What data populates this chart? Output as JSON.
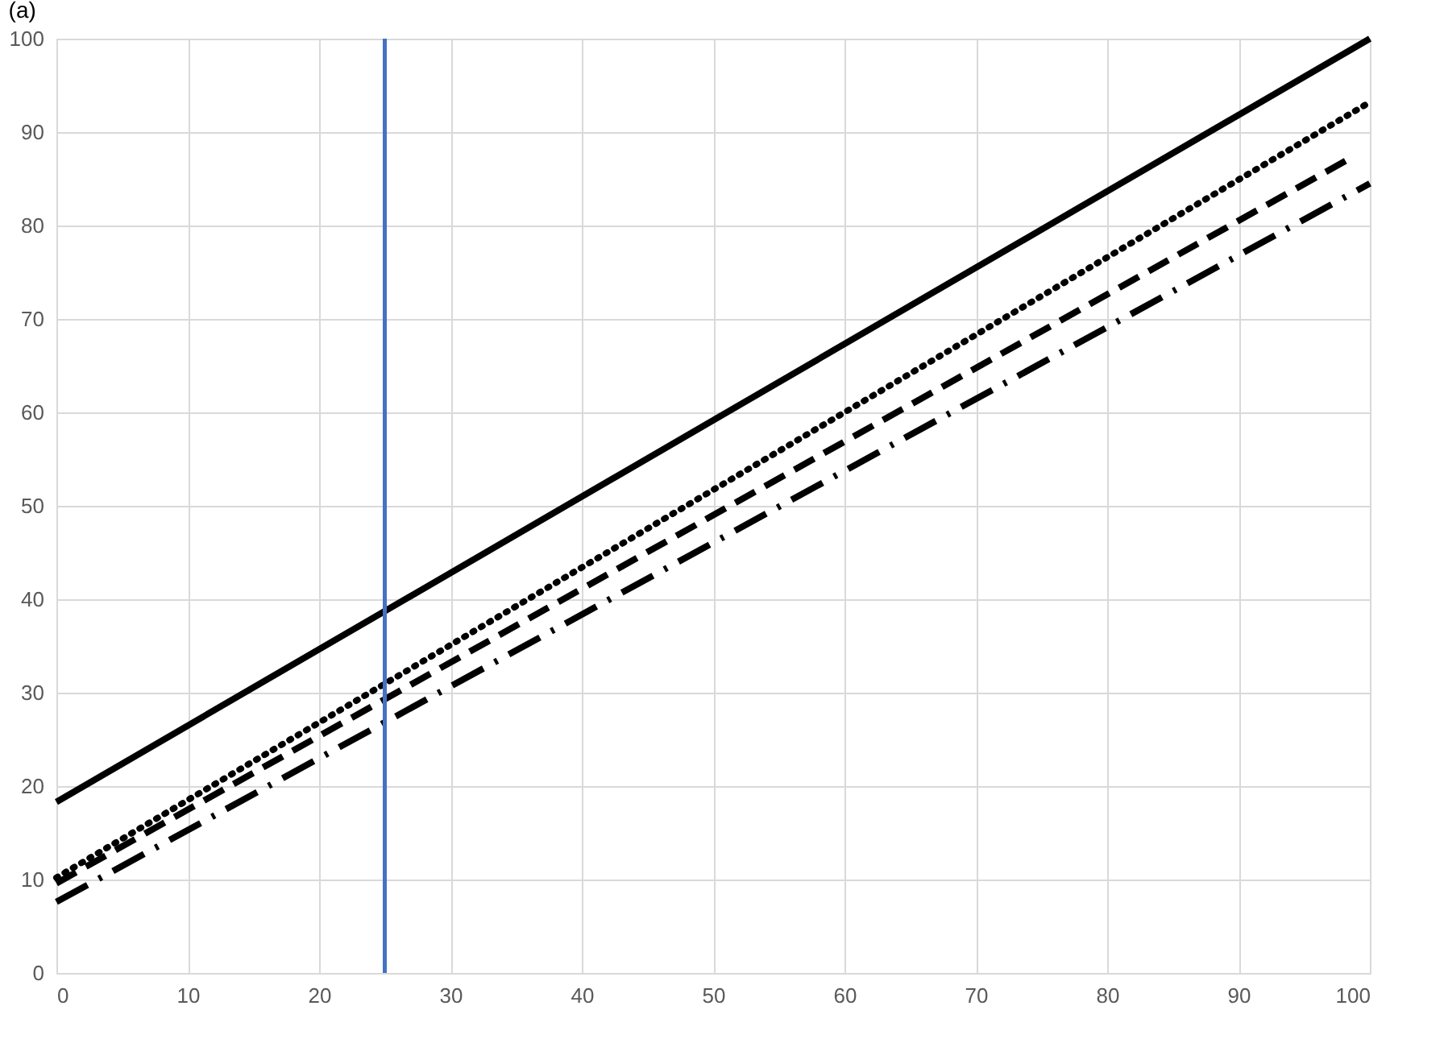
{
  "chart_data": {
    "type": "line",
    "title": "(a)",
    "series": [
      {
        "color": "#000000",
        "line_style": "solid",
        "x": [
          0,
          100
        ],
        "values": [
          18.3,
          100
        ]
      },
      {
        "color": "#000000",
        "line_style": "dotted",
        "x": [
          0,
          100
        ],
        "values": [
          10.2,
          93.2
        ]
      },
      {
        "color": "#000000",
        "line_style": "dashed",
        "x": [
          0,
          98.5
        ],
        "values": [
          9.6,
          87.2
        ]
      },
      {
        "color": "#000000",
        "line_style": "dashdot",
        "x": [
          0,
          100
        ],
        "values": [
          7.6,
          84.5
        ]
      }
    ],
    "ref_lines": [
      {
        "axis": "x",
        "value": 25,
        "color": "#4472c4"
      }
    ],
    "xlim": [
      0,
      100
    ],
    "xticks": [
      0,
      10,
      20,
      30,
      40,
      50,
      60,
      70,
      80,
      90,
      100
    ],
    "ylim": [
      0,
      100
    ],
    "yticks": [
      0,
      10,
      20,
      30,
      40,
      50,
      60,
      70,
      80,
      90,
      100
    ],
    "grid": true,
    "marker": "none"
  }
}
